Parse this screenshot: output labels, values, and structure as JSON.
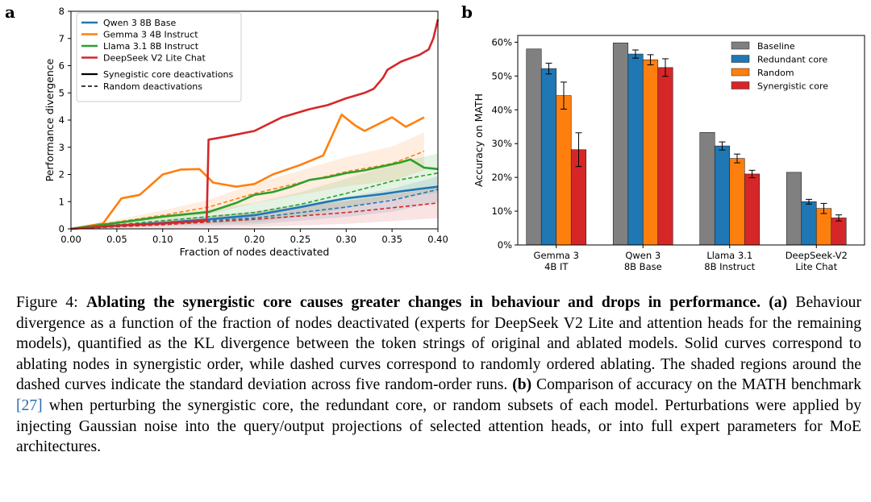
{
  "panel_a": {
    "letter": "a",
    "chart_data": {
      "type": "line",
      "xlabel": "Fraction of nodes deactivated",
      "ylabel": "Performance divergence",
      "xlim": [
        0,
        0.4
      ],
      "ylim": [
        0,
        8
      ],
      "xticks": [
        "0.00",
        "0.05",
        "0.10",
        "0.15",
        "0.20",
        "0.25",
        "0.30",
        "0.35",
        "0.40"
      ],
      "yticks": [
        "0",
        "1",
        "2",
        "3",
        "4",
        "5",
        "6",
        "7",
        "8"
      ],
      "grid": false,
      "legend_placement": "top-left",
      "legend_style": {
        "solid": "Synegistic core deactivations",
        "dashed": "Random deactivations"
      },
      "series": [
        {
          "name": "Qwen 3 8B Base",
          "color": "#1f77b4",
          "solid": [
            [
              0,
              0
            ],
            [
              0.05,
              0.12
            ],
            [
              0.1,
              0.22
            ],
            [
              0.15,
              0.35
            ],
            [
              0.2,
              0.5
            ],
            [
              0.22,
              0.62
            ],
            [
              0.25,
              0.8
            ],
            [
              0.28,
              1.0
            ],
            [
              0.3,
              1.12
            ],
            [
              0.32,
              1.2
            ],
            [
              0.34,
              1.28
            ],
            [
              0.36,
              1.38
            ],
            [
              0.38,
              1.47
            ],
            [
              0.4,
              1.55
            ]
          ],
          "dashed": [
            [
              0,
              0
            ],
            [
              0.1,
              0.2
            ],
            [
              0.2,
              0.4
            ],
            [
              0.3,
              0.8
            ],
            [
              0.35,
              1.05
            ],
            [
              0.4,
              1.45
            ]
          ],
          "std": 0.3
        },
        {
          "name": "Gemma 3 4B Instruct",
          "color": "#ff7f0e",
          "solid": [
            [
              0,
              0
            ],
            [
              0.035,
              0.2
            ],
            [
              0.055,
              1.12
            ],
            [
              0.075,
              1.25
            ],
            [
              0.1,
              2.0
            ],
            [
              0.12,
              2.18
            ],
            [
              0.14,
              2.2
            ],
            [
              0.155,
              1.7
            ],
            [
              0.18,
              1.55
            ],
            [
              0.2,
              1.65
            ],
            [
              0.22,
              2.0
            ],
            [
              0.25,
              2.35
            ],
            [
              0.275,
              2.7
            ],
            [
              0.295,
              4.2
            ],
            [
              0.31,
              3.8
            ],
            [
              0.32,
              3.6
            ],
            [
              0.35,
              4.1
            ],
            [
              0.365,
              3.75
            ],
            [
              0.385,
              4.1
            ]
          ],
          "dashed": [
            [
              0,
              0
            ],
            [
              0.1,
              0.5
            ],
            [
              0.15,
              0.8
            ],
            [
              0.2,
              1.3
            ],
            [
              0.25,
              1.7
            ],
            [
              0.3,
              2.1
            ],
            [
              0.35,
              2.4
            ],
            [
              0.385,
              2.85
            ]
          ],
          "std": 0.45
        },
        {
          "name": "Llama 3.1 8B Instruct",
          "color": "#2ca02c",
          "solid": [
            [
              0,
              0
            ],
            [
              0.05,
              0.22
            ],
            [
              0.1,
              0.45
            ],
            [
              0.15,
              0.62
            ],
            [
              0.18,
              0.95
            ],
            [
              0.2,
              1.25
            ],
            [
              0.22,
              1.35
            ],
            [
              0.24,
              1.55
            ],
            [
              0.26,
              1.8
            ],
            [
              0.28,
              1.9
            ],
            [
              0.3,
              2.05
            ],
            [
              0.32,
              2.15
            ],
            [
              0.34,
              2.3
            ],
            [
              0.36,
              2.45
            ],
            [
              0.37,
              2.55
            ],
            [
              0.385,
              2.25
            ],
            [
              0.4,
              2.2
            ]
          ],
          "dashed": [
            [
              0,
              0
            ],
            [
              0.1,
              0.3
            ],
            [
              0.2,
              0.6
            ],
            [
              0.25,
              0.9
            ],
            [
              0.3,
              1.3
            ],
            [
              0.35,
              1.75
            ],
            [
              0.4,
              2.05
            ]
          ],
          "std": 0.45
        },
        {
          "name": "DeepSeek V2 Lite Chat",
          "color": "#d62728",
          "solid": [
            [
              0,
              0
            ],
            [
              0.05,
              0.12
            ],
            [
              0.1,
              0.2
            ],
            [
              0.148,
              0.3
            ],
            [
              0.15,
              3.28
            ],
            [
              0.17,
              3.4
            ],
            [
              0.2,
              3.6
            ],
            [
              0.23,
              4.1
            ],
            [
              0.26,
              4.4
            ],
            [
              0.28,
              4.55
            ],
            [
              0.3,
              4.8
            ],
            [
              0.32,
              5.0
            ],
            [
              0.33,
              5.15
            ],
            [
              0.34,
              5.55
            ],
            [
              0.345,
              5.85
            ],
            [
              0.36,
              6.15
            ],
            [
              0.38,
              6.4
            ],
            [
              0.39,
              6.6
            ],
            [
              0.395,
              7.0
            ],
            [
              0.4,
              7.7
            ]
          ],
          "dashed": [
            [
              0,
              0
            ],
            [
              0.1,
              0.15
            ],
            [
              0.2,
              0.35
            ],
            [
              0.3,
              0.6
            ],
            [
              0.4,
              0.95
            ]
          ],
          "std": 0.35
        }
      ]
    }
  },
  "panel_b": {
    "letter": "b",
    "chart_data": {
      "type": "bar",
      "ylabel": "Accuracy on MATH",
      "ylim": [
        0,
        62
      ],
      "yticks": [
        "0%",
        "10%",
        "20%",
        "30%",
        "40%",
        "50%",
        "60%"
      ],
      "categories": [
        "Gemma 3\n4B IT",
        "Qwen 3\n8B Base",
        "Llama 3.1\n8B Instruct",
        "DeepSeek-V2\nLite Chat"
      ],
      "legend_placement": "top-right",
      "series": [
        {
          "name": "Baseline",
          "color": "#808080",
          "values": [
            58,
            59.8,
            33.3,
            21.5
          ],
          "errors": [
            0,
            0,
            0,
            0
          ]
        },
        {
          "name": "Redundant core",
          "color": "#1f77b4",
          "values": [
            52.2,
            56.5,
            29.3,
            12.8
          ],
          "errors": [
            1.6,
            1.2,
            1.2,
            0.7
          ]
        },
        {
          "name": "Random",
          "color": "#ff7f0e",
          "values": [
            44.2,
            54.8,
            25.6,
            10.8
          ],
          "errors": [
            4.0,
            1.5,
            1.3,
            1.5
          ]
        },
        {
          "name": "Synergistic core",
          "color": "#d62728",
          "values": [
            28.2,
            52.5,
            21.0,
            8.0
          ],
          "errors": [
            5.0,
            2.6,
            1.1,
            0.9
          ]
        }
      ]
    }
  },
  "caption": {
    "figure_label": "Figure 4:",
    "title": "Ablating the synergistic core causes greater changes in behaviour and drops in performance.",
    "a_label": "(a)",
    "a_text": "Behaviour divergence as a function of the fraction of nodes deactivated (experts for DeepSeek V2 Lite and attention heads for the remaining models), quantified as the KL divergence between the token strings of original and ablated models. Solid curves correspond to ablating nodes in synergistic order, while dashed curves correspond to randomly ordered ablating. The shaded regions around the dashed curves indicate the standard deviation across five random-order runs.",
    "b_label": "(b)",
    "b_text_1": "Comparison of accuracy on the MATH benchmark",
    "citation": "[27]",
    "b_text_2": "when perturbing the synergistic core, the redundant core, or random subsets of each model. Perturbations were applied by injecting Gaussian noise into the query/output projections of selected attention heads, or into full expert parameters for MoE architectures."
  }
}
